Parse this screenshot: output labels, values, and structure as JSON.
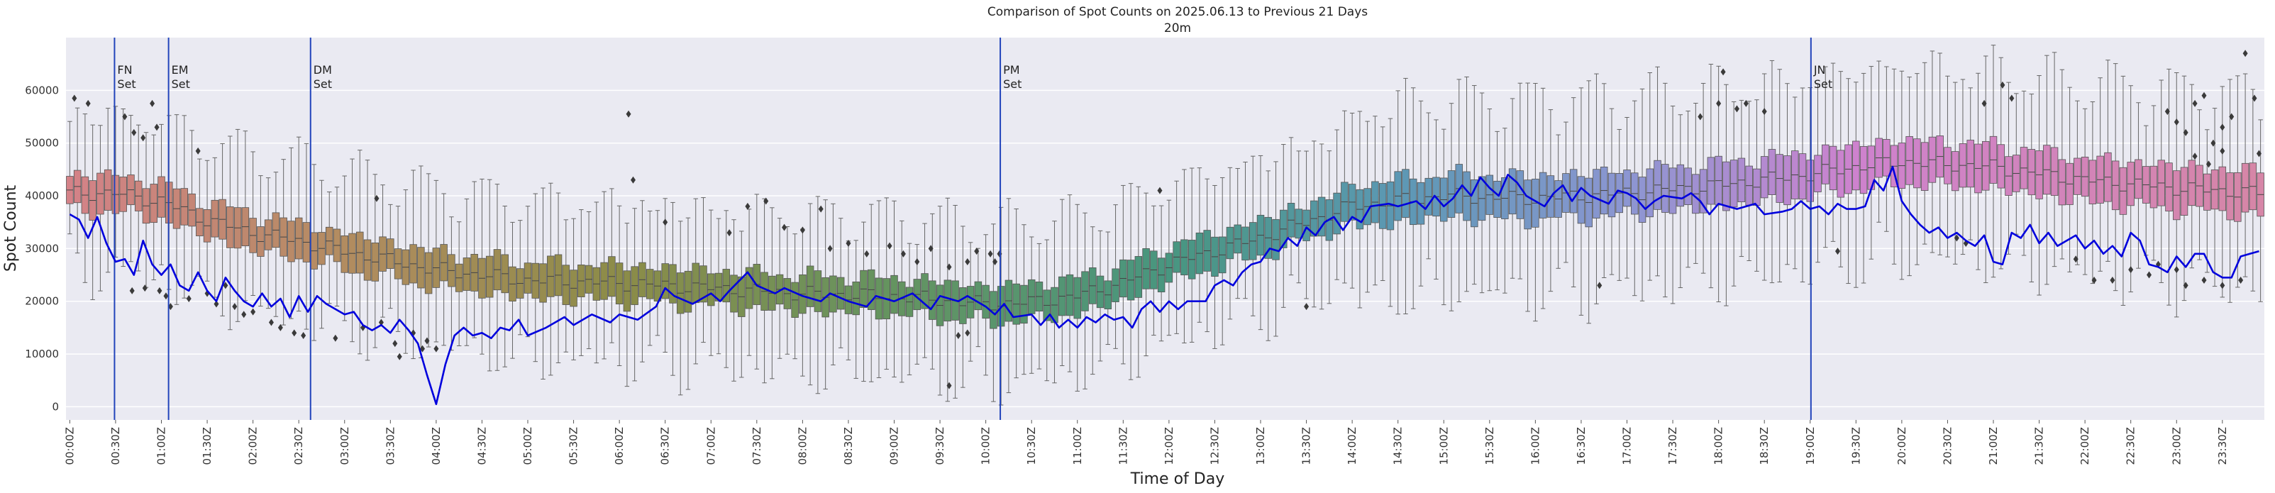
{
  "chart_data": {
    "type": "box",
    "title": "Comparison of Spot Counts on 2025.06.13 to Previous 21 Days",
    "subtitle": "20m",
    "xlabel": "Time of Day",
    "ylabel": "Spot Count",
    "ylim": [
      -2500,
      70000
    ],
    "y_ticks": [
      0,
      10000,
      20000,
      30000,
      40000,
      50000,
      60000
    ],
    "x_tick_labels": [
      "00:00Z",
      "00:30Z",
      "01:00Z",
      "01:30Z",
      "02:00Z",
      "02:30Z",
      "03:00Z",
      "03:30Z",
      "04:00Z",
      "04:30Z",
      "05:00Z",
      "05:30Z",
      "06:00Z",
      "06:30Z",
      "07:00Z",
      "07:30Z",
      "08:00Z",
      "08:30Z",
      "09:00Z",
      "09:30Z",
      "10:00Z",
      "10:30Z",
      "11:00Z",
      "11:30Z",
      "12:00Z",
      "12:30Z",
      "13:00Z",
      "13:30Z",
      "14:00Z",
      "14:30Z",
      "15:00Z",
      "15:30Z",
      "16:00Z",
      "16:30Z",
      "17:00Z",
      "17:30Z",
      "18:00Z",
      "18:30Z",
      "19:00Z",
      "19:30Z",
      "20:00Z",
      "20:30Z",
      "21:00Z",
      "21:30Z",
      "22:00Z",
      "22:30Z",
      "23:00Z",
      "23:30Z"
    ],
    "bins_per_hour": 12,
    "grid": true,
    "events": [
      {
        "label": "FN\nSet",
        "time_hours": 0.53
      },
      {
        "label": "EM\nSet",
        "time_hours": 1.12
      },
      {
        "label": "DM\nSet",
        "time_hours": 2.67
      },
      {
        "label": "PM\nSet",
        "time_hours": 10.2
      },
      {
        "label": "JN\nSet",
        "time_hours": 19.05
      }
    ],
    "history_median_profile": [
      [
        0,
        40500
      ],
      [
        0.5,
        40500
      ],
      [
        1,
        39000
      ],
      [
        1.5,
        35500
      ],
      [
        2,
        33000
      ],
      [
        2.5,
        31500
      ],
      [
        3,
        29500
      ],
      [
        4,
        26000
      ],
      [
        5,
        24000
      ],
      [
        6,
        23500
      ],
      [
        7,
        22500
      ],
      [
        8,
        21500
      ],
      [
        9,
        21000
      ],
      [
        10,
        19500
      ],
      [
        10.5,
        19800
      ],
      [
        11,
        21000
      ],
      [
        11.5,
        23500
      ],
      [
        12,
        27000
      ],
      [
        13,
        32000
      ],
      [
        14,
        38000
      ],
      [
        15,
        40000
      ],
      [
        16,
        39500
      ],
      [
        17,
        40500
      ],
      [
        18,
        42000
      ],
      [
        19,
        44000
      ],
      [
        19.5,
        45500
      ],
      [
        20,
        46500
      ],
      [
        21,
        45500
      ],
      [
        22,
        43000
      ],
      [
        23,
        41500
      ],
      [
        23.92,
        40500
      ]
    ],
    "today_series": {
      "name": "2025.06.13",
      "color": "#0000dd",
      "points": [
        [
          0,
          36500
        ],
        [
          0.1,
          35500
        ],
        [
          0.2,
          32000
        ],
        [
          0.3,
          36000
        ],
        [
          0.4,
          31000
        ],
        [
          0.5,
          27500
        ],
        [
          0.6,
          28000
        ],
        [
          0.7,
          25000
        ],
        [
          0.8,
          31500
        ],
        [
          0.9,
          27000
        ],
        [
          1.0,
          25000
        ],
        [
          1.1,
          27000
        ],
        [
          1.2,
          23000
        ],
        [
          1.3,
          22000
        ],
        [
          1.4,
          25500
        ],
        [
          1.5,
          22000
        ],
        [
          1.6,
          20000
        ],
        [
          1.7,
          24500
        ],
        [
          1.8,
          22000
        ],
        [
          1.9,
          20000
        ],
        [
          2.0,
          19000
        ],
        [
          2.1,
          21500
        ],
        [
          2.2,
          19000
        ],
        [
          2.3,
          20500
        ],
        [
          2.4,
          17000
        ],
        [
          2.5,
          21000
        ],
        [
          2.6,
          18000
        ],
        [
          2.7,
          21000
        ],
        [
          2.8,
          19500
        ],
        [
          3.0,
          17500
        ],
        [
          3.1,
          18000
        ],
        [
          3.2,
          15500
        ],
        [
          3.3,
          14500
        ],
        [
          3.4,
          15500
        ],
        [
          3.5,
          14000
        ],
        [
          3.6,
          16500
        ],
        [
          3.7,
          14500
        ],
        [
          3.8,
          12000
        ],
        [
          3.9,
          6000
        ],
        [
          4.0,
          500
        ],
        [
          4.1,
          8000
        ],
        [
          4.2,
          13500
        ],
        [
          4.3,
          15000
        ],
        [
          4.4,
          13500
        ],
        [
          4.5,
          14000
        ],
        [
          4.6,
          13000
        ],
        [
          4.7,
          15000
        ],
        [
          4.8,
          14500
        ],
        [
          4.9,
          16500
        ],
        [
          5.0,
          13500
        ],
        [
          5.2,
          15000
        ],
        [
          5.4,
          17000
        ],
        [
          5.5,
          15500
        ],
        [
          5.7,
          17500
        ],
        [
          5.9,
          16000
        ],
        [
          6.0,
          17500
        ],
        [
          6.2,
          16500
        ],
        [
          6.4,
          19000
        ],
        [
          6.5,
          22500
        ],
        [
          6.6,
          21000
        ],
        [
          6.8,
          19500
        ],
        [
          7.0,
          21500
        ],
        [
          7.1,
          20000
        ],
        [
          7.2,
          22000
        ],
        [
          7.4,
          25500
        ],
        [
          7.5,
          23000
        ],
        [
          7.7,
          21500
        ],
        [
          7.8,
          22500
        ],
        [
          8.0,
          21000
        ],
        [
          8.2,
          20000
        ],
        [
          8.3,
          21500
        ],
        [
          8.5,
          20000
        ],
        [
          8.7,
          19000
        ],
        [
          8.8,
          21000
        ],
        [
          9.0,
          20000
        ],
        [
          9.2,
          21500
        ],
        [
          9.4,
          18500
        ],
        [
          9.5,
          21000
        ],
        [
          9.7,
          20000
        ],
        [
          9.8,
          21000
        ],
        [
          10.0,
          19000
        ],
        [
          10.1,
          17500
        ],
        [
          10.2,
          19500
        ],
        [
          10.3,
          17000
        ],
        [
          10.5,
          17500
        ],
        [
          10.6,
          15500
        ],
        [
          10.7,
          17500
        ],
        [
          10.8,
          15000
        ],
        [
          10.9,
          16500
        ],
        [
          11.0,
          15000
        ],
        [
          11.1,
          17000
        ],
        [
          11.2,
          16000
        ],
        [
          11.3,
          17500
        ],
        [
          11.4,
          16500
        ],
        [
          11.5,
          17000
        ],
        [
          11.6,
          15000
        ],
        [
          11.7,
          18500
        ],
        [
          11.8,
          20000
        ],
        [
          11.9,
          18000
        ],
        [
          12.0,
          20000
        ],
        [
          12.1,
          18500
        ],
        [
          12.2,
          20000
        ],
        [
          12.4,
          20000
        ],
        [
          12.5,
          23000
        ],
        [
          12.6,
          24000
        ],
        [
          12.7,
          23000
        ],
        [
          12.8,
          25500
        ],
        [
          12.9,
          27000
        ],
        [
          13.0,
          27500
        ],
        [
          13.1,
          30000
        ],
        [
          13.2,
          29500
        ],
        [
          13.3,
          32000
        ],
        [
          13.4,
          30500
        ],
        [
          13.5,
          34000
        ],
        [
          13.6,
          32500
        ],
        [
          13.7,
          35000
        ],
        [
          13.8,
          36000
        ],
        [
          13.9,
          33500
        ],
        [
          14.0,
          36000
        ],
        [
          14.1,
          35000
        ],
        [
          14.2,
          38000
        ],
        [
          14.4,
          38500
        ],
        [
          14.5,
          38000
        ],
        [
          14.6,
          38500
        ],
        [
          14.7,
          39000
        ],
        [
          14.8,
          37500
        ],
        [
          14.9,
          40000
        ],
        [
          15.0,
          38000
        ],
        [
          15.1,
          39500
        ],
        [
          15.2,
          42000
        ],
        [
          15.3,
          40000
        ],
        [
          15.4,
          43500
        ],
        [
          15.5,
          41500
        ],
        [
          15.6,
          40000
        ],
        [
          15.7,
          44000
        ],
        [
          15.8,
          42500
        ],
        [
          15.9,
          40000
        ],
        [
          16.0,
          39000
        ],
        [
          16.1,
          38000
        ],
        [
          16.2,
          40500
        ],
        [
          16.3,
          42000
        ],
        [
          16.4,
          39000
        ],
        [
          16.5,
          41500
        ],
        [
          16.6,
          40000
        ],
        [
          16.8,
          38500
        ],
        [
          16.9,
          41000
        ],
        [
          17.0,
          40500
        ],
        [
          17.1,
          39500
        ],
        [
          17.2,
          37500
        ],
        [
          17.3,
          39000
        ],
        [
          17.4,
          40000
        ],
        [
          17.6,
          39500
        ],
        [
          17.7,
          40500
        ],
        [
          17.8,
          39000
        ],
        [
          17.9,
          36500
        ],
        [
          18.0,
          38500
        ],
        [
          18.2,
          37500
        ],
        [
          18.4,
          38500
        ],
        [
          18.5,
          36500
        ],
        [
          18.7,
          37000
        ],
        [
          18.8,
          37500
        ],
        [
          18.9,
          39000
        ],
        [
          19.0,
          37500
        ],
        [
          19.1,
          38000
        ],
        [
          19.2,
          36500
        ],
        [
          19.3,
          38500
        ],
        [
          19.4,
          37500
        ],
        [
          19.5,
          37500
        ],
        [
          19.6,
          38000
        ],
        [
          19.7,
          43000
        ],
        [
          19.8,
          41000
        ],
        [
          19.9,
          45500
        ],
        [
          20.0,
          39000
        ],
        [
          20.1,
          36500
        ],
        [
          20.2,
          34500
        ],
        [
          20.3,
          33000
        ],
        [
          20.4,
          34000
        ],
        [
          20.5,
          32000
        ],
        [
          20.6,
          33000
        ],
        [
          20.7,
          31500
        ],
        [
          20.8,
          30500
        ],
        [
          20.9,
          32500
        ],
        [
          21.0,
          27500
        ],
        [
          21.1,
          27000
        ],
        [
          21.2,
          33000
        ],
        [
          21.3,
          32000
        ],
        [
          21.4,
          34500
        ],
        [
          21.5,
          31000
        ],
        [
          21.6,
          33000
        ],
        [
          21.7,
          30500
        ],
        [
          21.8,
          31500
        ],
        [
          21.9,
          32500
        ],
        [
          22.0,
          30000
        ],
        [
          22.1,
          31500
        ],
        [
          22.2,
          29000
        ],
        [
          22.3,
          30500
        ],
        [
          22.4,
          28500
        ],
        [
          22.5,
          33000
        ],
        [
          22.6,
          31500
        ],
        [
          22.7,
          27000
        ],
        [
          22.8,
          26500
        ],
        [
          22.9,
          25500
        ],
        [
          23.0,
          28500
        ],
        [
          23.1,
          26500
        ],
        [
          23.2,
          29000
        ],
        [
          23.3,
          29000
        ],
        [
          23.4,
          25500
        ],
        [
          23.5,
          24500
        ],
        [
          23.6,
          24500
        ],
        [
          23.7,
          28500
        ],
        [
          23.8,
          29000
        ],
        [
          23.9,
          29500
        ]
      ]
    },
    "outliers": [
      [
        0.05,
        58500
      ],
      [
        0.2,
        57500
      ],
      [
        0.6,
        55000
      ],
      [
        0.7,
        52000
      ],
      [
        0.8,
        51000
      ],
      [
        0.9,
        57500
      ],
      [
        0.95,
        53000
      ],
      [
        0.68,
        22000
      ],
      [
        0.82,
        22500
      ],
      [
        0.98,
        22000
      ],
      [
        1.05,
        21000
      ],
      [
        1.1,
        19000
      ],
      [
        1.3,
        20500
      ],
      [
        1.4,
        48500
      ],
      [
        1.5,
        21500
      ],
      [
        1.6,
        19500
      ],
      [
        1.7,
        23000
      ],
      [
        1.8,
        19000
      ],
      [
        1.9,
        17500
      ],
      [
        2.0,
        18000
      ],
      [
        2.2,
        16000
      ],
      [
        2.3,
        15000
      ],
      [
        2.45,
        14000
      ],
      [
        2.55,
        13500
      ],
      [
        2.9,
        13000
      ],
      [
        3.2,
        15000
      ],
      [
        3.35,
        39500
      ],
      [
        3.4,
        16000
      ],
      [
        3.55,
        12000
      ],
      [
        3.6,
        9500
      ],
      [
        3.75,
        14000
      ],
      [
        3.85,
        11000
      ],
      [
        3.9,
        12500
      ],
      [
        4.0,
        11000
      ],
      [
        6.1,
        55500
      ],
      [
        6.15,
        43000
      ],
      [
        6.5,
        35000
      ],
      [
        7.2,
        33000
      ],
      [
        7.4,
        38000
      ],
      [
        7.6,
        39000
      ],
      [
        7.8,
        34000
      ],
      [
        8.0,
        33500
      ],
      [
        8.2,
        37500
      ],
      [
        8.3,
        30000
      ],
      [
        8.5,
        31000
      ],
      [
        8.7,
        29000
      ],
      [
        8.95,
        30500
      ],
      [
        9.1,
        29000
      ],
      [
        9.25,
        27500
      ],
      [
        9.4,
        30000
      ],
      [
        9.6,
        26500
      ],
      [
        9.8,
        27500
      ],
      [
        9.9,
        29500
      ],
      [
        10.05,
        29000
      ],
      [
        10.1,
        27500
      ],
      [
        10.15,
        29000
      ],
      [
        9.6,
        4000
      ],
      [
        9.7,
        13500
      ],
      [
        9.8,
        14000
      ],
      [
        11.9,
        41000
      ],
      [
        13.5,
        19000
      ],
      [
        16.7,
        23000
      ],
      [
        17.8,
        55000
      ],
      [
        18.0,
        57500
      ],
      [
        18.05,
        63500
      ],
      [
        18.2,
        56500
      ],
      [
        18.3,
        57500
      ],
      [
        18.5,
        56000
      ],
      [
        19.3,
        29500
      ],
      [
        20.6,
        32000
      ],
      [
        20.7,
        31000
      ],
      [
        20.9,
        57500
      ],
      [
        21.1,
        61000
      ],
      [
        21.2,
        58500
      ],
      [
        21.9,
        28000
      ],
      [
        22.1,
        24000
      ],
      [
        22.3,
        24000
      ],
      [
        22.5,
        26000
      ],
      [
        22.7,
        25000
      ],
      [
        22.8,
        27000
      ],
      [
        23.0,
        26000
      ],
      [
        23.1,
        23000
      ],
      [
        23.3,
        24000
      ],
      [
        23.5,
        23000
      ],
      [
        23.7,
        24000
      ],
      [
        22.9,
        56000
      ],
      [
        23.0,
        54000
      ],
      [
        23.1,
        52000
      ],
      [
        23.2,
        57500
      ],
      [
        23.3,
        59000
      ],
      [
        23.4,
        50000
      ],
      [
        23.5,
        53000
      ],
      [
        23.6,
        55000
      ],
      [
        23.75,
        67000
      ],
      [
        23.85,
        58500
      ],
      [
        23.9,
        48000
      ],
      [
        23.2,
        47500
      ],
      [
        23.35,
        46000
      ],
      [
        23.5,
        48500
      ]
    ]
  }
}
